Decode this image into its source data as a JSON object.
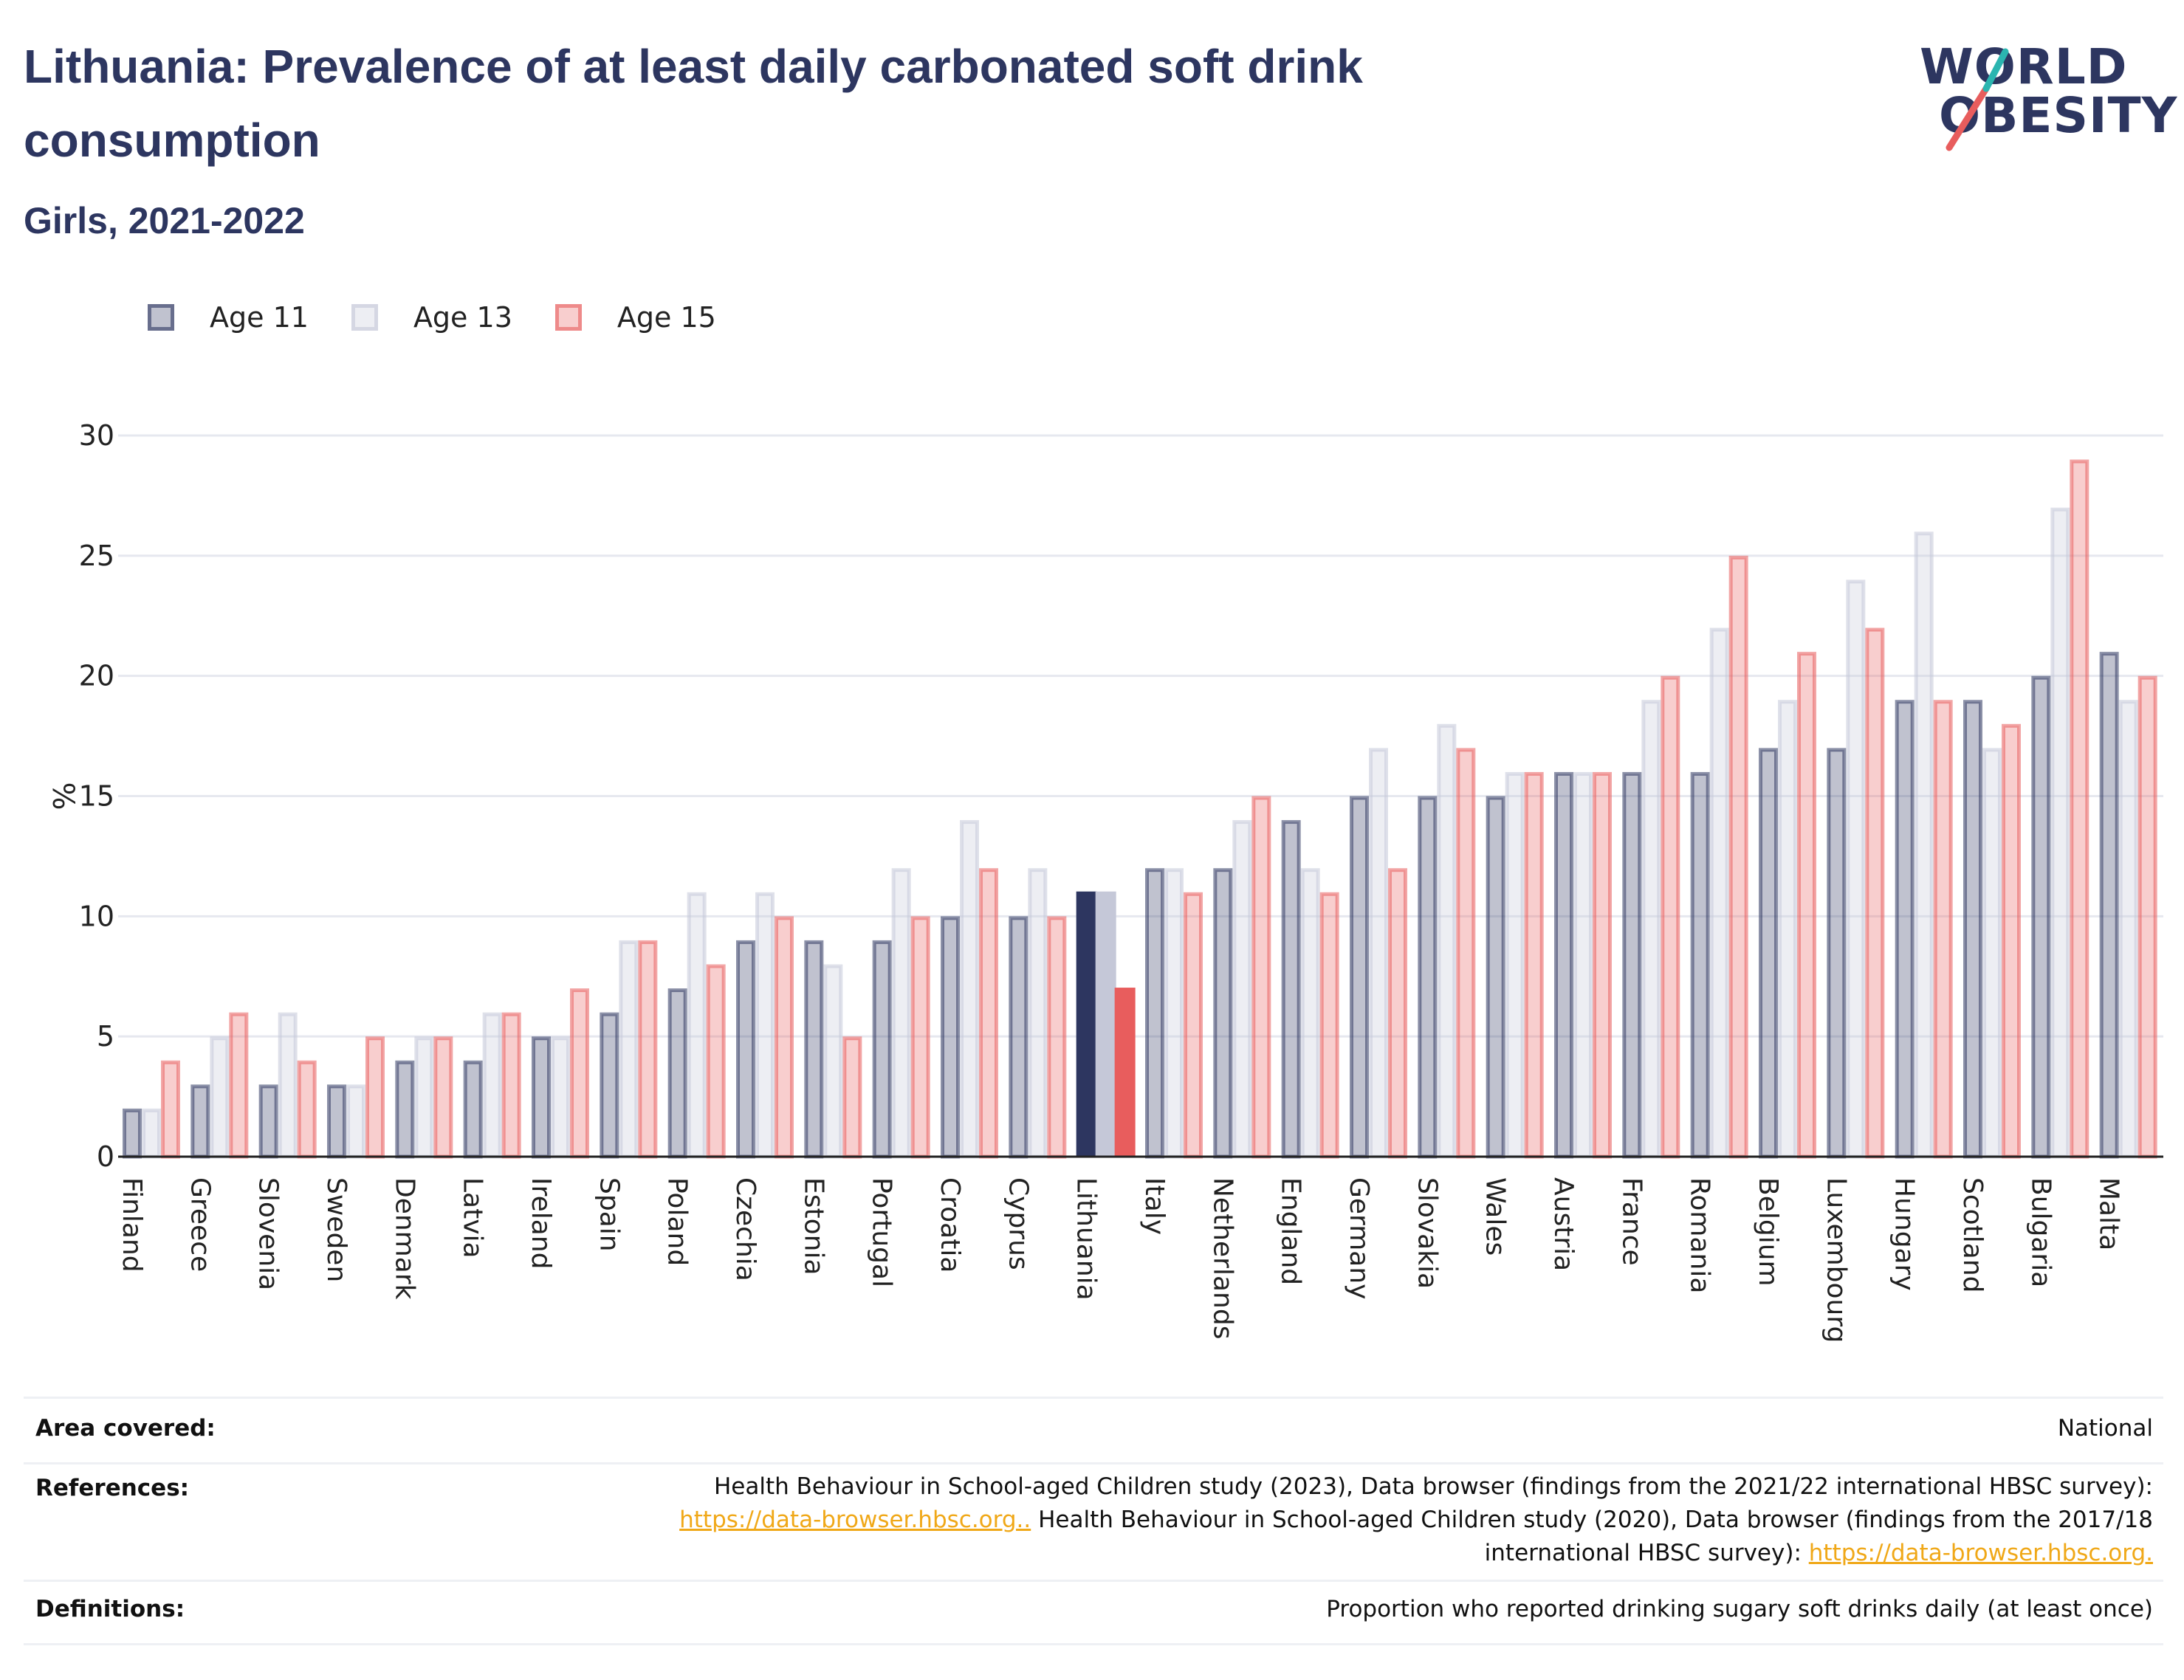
{
  "title": "Lithuania: Prevalence of at least daily carbonated soft drink consumption",
  "subtitle": "Girls, 2021-2022",
  "logo": {
    "line1": "WORLD",
    "line2": "OBESITY"
  },
  "colors": {
    "age11": "#2d3660",
    "age13": "#c5c8d8",
    "age15": "#e85d5d",
    "grid": "#e6e8ef"
  },
  "legend": [
    "Age 11",
    "Age 13",
    "Age 15"
  ],
  "chart_data": {
    "type": "bar",
    "ylabel": "%",
    "ylim": [
      0,
      30
    ],
    "yticks": [
      0,
      5,
      10,
      15,
      20,
      25,
      30
    ],
    "highlight": "Lithuania",
    "categories": [
      "Finland",
      "Greece",
      "Slovenia",
      "Sweden",
      "Denmark",
      "Latvia",
      "Ireland",
      "Spain",
      "Poland",
      "Czechia",
      "Estonia",
      "Portugal",
      "Croatia",
      "Cyprus",
      "Lithuania",
      "Italy",
      "Netherlands",
      "England",
      "Germany",
      "Slovakia",
      "Wales",
      "Austria",
      "France",
      "Romania",
      "Belgium",
      "Luxembourg",
      "Hungary",
      "Scotland",
      "Bulgaria",
      "Malta"
    ],
    "series": [
      {
        "name": "Age 11",
        "values": [
          2,
          3,
          3,
          3,
          4,
          4,
          5,
          6,
          7,
          9,
          9,
          9,
          10,
          10,
          11,
          12,
          12,
          14,
          15,
          15,
          15,
          16,
          16,
          16,
          17,
          17,
          19,
          19,
          20,
          21
        ]
      },
      {
        "name": "Age 13",
        "values": [
          2,
          5,
          6,
          3,
          5,
          6,
          5,
          9,
          11,
          11,
          8,
          12,
          14,
          12,
          11,
          12,
          14,
          12,
          17,
          18,
          16,
          16,
          19,
          22,
          19,
          24,
          26,
          17,
          27,
          19
        ]
      },
      {
        "name": "Age 15",
        "values": [
          4,
          6,
          4,
          5,
          5,
          6,
          7,
          9,
          8,
          10,
          5,
          10,
          12,
          10,
          7,
          11,
          15,
          11,
          12,
          17,
          16,
          16,
          20,
          25,
          21,
          22,
          19,
          18,
          29,
          20
        ]
      }
    ]
  },
  "footer": {
    "area_label": "Area covered:",
    "area_value": "National",
    "references_label": "References:",
    "ref_text1": "Health Behaviour in School-aged Children study (2023), Data browser (findings from the 2021/22 international HBSC survey):",
    "ref_link1": "https://data-browser.hbsc.org..",
    "ref_text2": " Health Behaviour in School-aged Children study (2020), Data browser (findings from the 2017/18",
    "ref_text3": "international HBSC survey): ",
    "ref_link2": "https://data-browser.hbsc.org.",
    "definitions_label": "Definitions:",
    "definitions_value": "Proportion who reported drinking sugary soft drinks daily (at least once)"
  }
}
